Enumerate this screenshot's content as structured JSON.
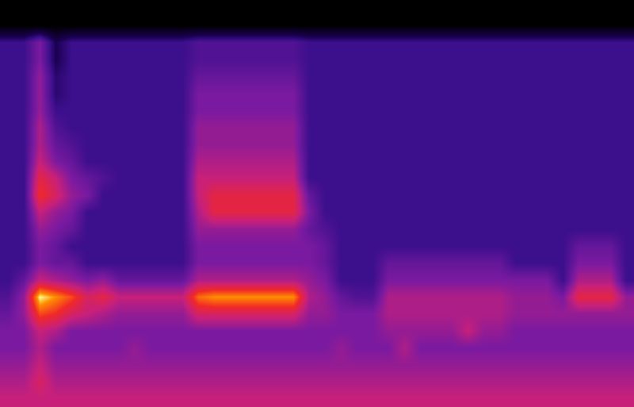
{
  "chart_data": {
    "type": "heatmap",
    "tick_labels": false,
    "grid": false,
    "zlim": [
      0,
      10
    ],
    "cells": [
      [
        0,
        0,
        0,
        0,
        0,
        0,
        0,
        0,
        0,
        0,
        0,
        0,
        0,
        0,
        0,
        0,
        0,
        0,
        0,
        0,
        0,
        0,
        0,
        0,
        0,
        0,
        0,
        0,
        0,
        0,
        0,
        0,
        0,
        0,
        0,
        0,
        0,
        0,
        0,
        0
      ],
      [
        0,
        0,
        0,
        0,
        0,
        0,
        0,
        0,
        0,
        0,
        0,
        0,
        0,
        0,
        0,
        0,
        0,
        0,
        0,
        0,
        0,
        0,
        0,
        0,
        0,
        0,
        0,
        0,
        0,
        0,
        0,
        0,
        0,
        0,
        0,
        0,
        0,
        0,
        0,
        0
      ],
      [
        3,
        3,
        4.5,
        2,
        3,
        3,
        3,
        3,
        3,
        3,
        3,
        3,
        3.5,
        3.5,
        3.5,
        3.5,
        3.5,
        3.5,
        3.5,
        3,
        3,
        3,
        3,
        3,
        3,
        3,
        3,
        3,
        3,
        3,
        3,
        3,
        3,
        3,
        3,
        3,
        3,
        3,
        3,
        3
      ],
      [
        3,
        3,
        4.5,
        2,
        3,
        3,
        3,
        3,
        3,
        3,
        3,
        3,
        3.5,
        3.5,
        3.5,
        3.5,
        3.5,
        3.5,
        3.5,
        3,
        3,
        3,
        3,
        3,
        3,
        3,
        3,
        3,
        3,
        3,
        3,
        3,
        3,
        3,
        3,
        3,
        3,
        3,
        3,
        3
      ],
      [
        3,
        3,
        5,
        2.5,
        3,
        3,
        3,
        3,
        3,
        3,
        3,
        3,
        4,
        4,
        4,
        4,
        4,
        4,
        4,
        3,
        3,
        3,
        3,
        3,
        3,
        3,
        3,
        3,
        3,
        3,
        3,
        3,
        3,
        3,
        3,
        3,
        3,
        3,
        3,
        3
      ],
      [
        3,
        3,
        5,
        2.5,
        3,
        3,
        3,
        3,
        3,
        3,
        3,
        3,
        4.5,
        4.5,
        4.5,
        4.5,
        4.5,
        4.5,
        4.5,
        3,
        3,
        3,
        3,
        3,
        3,
        3,
        3,
        3,
        3,
        3,
        3,
        3,
        3,
        3,
        3,
        3,
        3,
        3,
        3,
        3
      ],
      [
        3,
        3,
        5,
        3,
        3,
        3,
        3,
        3,
        3,
        3,
        3,
        3,
        4.5,
        4.5,
        4.5,
        4.5,
        4.5,
        4.5,
        4.5,
        3,
        3,
        3,
        3,
        3,
        3,
        3,
        3,
        3,
        3,
        3,
        3,
        3,
        3,
        3,
        3,
        3,
        3,
        3,
        3,
        3
      ],
      [
        3,
        3,
        5.5,
        3.5,
        3,
        3,
        3,
        3,
        3,
        3,
        3,
        3,
        5,
        5,
        5,
        5,
        5,
        5,
        5,
        3,
        3,
        3,
        3,
        3,
        3,
        3,
        3,
        3,
        3,
        3,
        3,
        3,
        3,
        3,
        3,
        3,
        3,
        3,
        3,
        3
      ],
      [
        3,
        3,
        5.5,
        4,
        3.5,
        3,
        3,
        3,
        3,
        3,
        3,
        3,
        5,
        5,
        5,
        5,
        5,
        5,
        5,
        3,
        3,
        3,
        3,
        3,
        3,
        3,
        3,
        3,
        3,
        3,
        3,
        3,
        3,
        3,
        3,
        3,
        3,
        3,
        3,
        3
      ],
      [
        3,
        3,
        6,
        4.5,
        4,
        3,
        3,
        3,
        3,
        3,
        3,
        3,
        5.5,
        5.5,
        5.5,
        5.5,
        5.5,
        5.5,
        5.5,
        3,
        3,
        3,
        3,
        3,
        3,
        3,
        3,
        3,
        3,
        3,
        3,
        3,
        3,
        3,
        3,
        3,
        3,
        3,
        3,
        3
      ],
      [
        3,
        3,
        7,
        6,
        4.5,
        4,
        3.5,
        3,
        3,
        3,
        3,
        3,
        6,
        6,
        6,
        6,
        6,
        6,
        6,
        3,
        3,
        3,
        3,
        3,
        3,
        3,
        3,
        3,
        3,
        3,
        3,
        3,
        3,
        3,
        3,
        3,
        3,
        3,
        3,
        3
      ],
      [
        3,
        3,
        7.5,
        6.5,
        5,
        4.5,
        3,
        3,
        3,
        3,
        3,
        3,
        6,
        7,
        7,
        7,
        7,
        7,
        7,
        4,
        3,
        3,
        3,
        3,
        3,
        3,
        3,
        3,
        3,
        3,
        3,
        3,
        3,
        3,
        3,
        3,
        3,
        3,
        3,
        3
      ],
      [
        3,
        3,
        6,
        5,
        4.5,
        3,
        3,
        3,
        3,
        3,
        3,
        3,
        5.5,
        7,
        7,
        7,
        7,
        7,
        7,
        4.5,
        3,
        3,
        3,
        3,
        3,
        3,
        3,
        3,
        3,
        3,
        3,
        3,
        3,
        3,
        3,
        3,
        3,
        3,
        3,
        3
      ],
      [
        3,
        3,
        5,
        4.5,
        4,
        3,
        3,
        3,
        3,
        3,
        3,
        3,
        5,
        5,
        5,
        5,
        5,
        5,
        5,
        4,
        3.5,
        3,
        3,
        3,
        3,
        3,
        3,
        3,
        3,
        3,
        3,
        3,
        3,
        3,
        3,
        3,
        3,
        3,
        3,
        3
      ],
      [
        3,
        3,
        4.5,
        4,
        3,
        3,
        3,
        3,
        3,
        3,
        3,
        3,
        4.5,
        4.5,
        4.5,
        4.5,
        4.5,
        4.5,
        4.5,
        4.5,
        4,
        3,
        3,
        3,
        3,
        3,
        3,
        3,
        3,
        3,
        3,
        3,
        3,
        3,
        3,
        3,
        4,
        4,
        4,
        3
      ],
      [
        3,
        3,
        4.5,
        4,
        4,
        3,
        3,
        3,
        3,
        3,
        3,
        3,
        4.5,
        4.5,
        4.5,
        4.5,
        4.5,
        4.5,
        4.5,
        4.5,
        4,
        3,
        3,
        3,
        4,
        4,
        4,
        4,
        4,
        4,
        4,
        4,
        3,
        3,
        3,
        3,
        4.5,
        4.5,
        4.5,
        3
      ],
      [
        3,
        4,
        6,
        5.5,
        5,
        4.5,
        5,
        4,
        4,
        4,
        4,
        4,
        5.5,
        5.5,
        5.5,
        5.5,
        5.5,
        5.5,
        5.5,
        5,
        4.5,
        3,
        3,
        3,
        4.5,
        4.5,
        4.5,
        4.5,
        4.5,
        4.5,
        4.5,
        4.5,
        4.5,
        4.5,
        4.5,
        3,
        5.5,
        5.5,
        5.5,
        3
      ],
      [
        3.5,
        5,
        10,
        9,
        8,
        6.5,
        7,
        6,
        6,
        6,
        6,
        6,
        8.5,
        9,
        9,
        9,
        9,
        9,
        9,
        5.5,
        5,
        4,
        3.5,
        3.5,
        5.5,
        5.5,
        5.5,
        5.5,
        5.5,
        5.5,
        5.5,
        5.5,
        5,
        5,
        5,
        4.5,
        7,
        7,
        7,
        5
      ],
      [
        4,
        5,
        8,
        7.5,
        6.5,
        6,
        5.5,
        5,
        5,
        5,
        5,
        5,
        6.5,
        6.5,
        6.5,
        6.5,
        6.5,
        6.5,
        6.5,
        5,
        5,
        4.5,
        4.5,
        4.5,
        5.5,
        5.5,
        5.5,
        5.5,
        5.5,
        5.5,
        5.5,
        5.5,
        5,
        5,
        5,
        5,
        5,
        5,
        5,
        5
      ],
      [
        4.5,
        4.5,
        6,
        5.5,
        4.5,
        4.5,
        4.5,
        4.5,
        4.5,
        4.5,
        4.5,
        4.5,
        4.5,
        4.5,
        4.5,
        4.5,
        4.5,
        4.5,
        4.5,
        4.5,
        4.5,
        4.5,
        4.5,
        4.5,
        5,
        5,
        5,
        5,
        5,
        6,
        5,
        5,
        4.5,
        4.5,
        4.5,
        4.5,
        4.5,
        4.5,
        4.5,
        4.5
      ],
      [
        4.5,
        4.5,
        5.5,
        4.5,
        4.5,
        4.5,
        4.5,
        4.5,
        5,
        4.5,
        4.5,
        4.5,
        4.5,
        4.5,
        4.5,
        4.5,
        4.5,
        4.5,
        4.5,
        4.5,
        4.5,
        5,
        4.5,
        4.5,
        4.5,
        5.5,
        4.5,
        4.5,
        4.5,
        4.5,
        4.5,
        4.5,
        4.5,
        4.5,
        4.5,
        4.5,
        4.5,
        4.5,
        4.5,
        4.5
      ],
      [
        5,
        5,
        6,
        5,
        5,
        5,
        5,
        5,
        5,
        5,
        5,
        5,
        5,
        5,
        5,
        5,
        5,
        5,
        5,
        5,
        5,
        5,
        5,
        5,
        5,
        5,
        5,
        5,
        5,
        5,
        5,
        5,
        5,
        5,
        5,
        5,
        5,
        5,
        5,
        5
      ],
      [
        5.5,
        5.5,
        6.5,
        5.5,
        5.5,
        5.5,
        5.5,
        5.5,
        5.5,
        5.5,
        5.5,
        5.5,
        5.5,
        5.5,
        5.5,
        5.5,
        5.5,
        5.5,
        5.5,
        5.5,
        5.5,
        5.5,
        5.5,
        5.5,
        5.5,
        5.5,
        5.5,
        5.5,
        5.5,
        5.5,
        5.5,
        5.5,
        5.5,
        5.5,
        5.5,
        5.5,
        5.5,
        5.5,
        5.5,
        5.5
      ],
      [
        6,
        6,
        6,
        6,
        6,
        6,
        6,
        6,
        6,
        6,
        6,
        6,
        6,
        6,
        6,
        6,
        6,
        6,
        6,
        6,
        6,
        6,
        6,
        6,
        6,
        6,
        6,
        6,
        6,
        6,
        6,
        6,
        6,
        6,
        6,
        6,
        6,
        6,
        6,
        6
      ]
    ]
  }
}
